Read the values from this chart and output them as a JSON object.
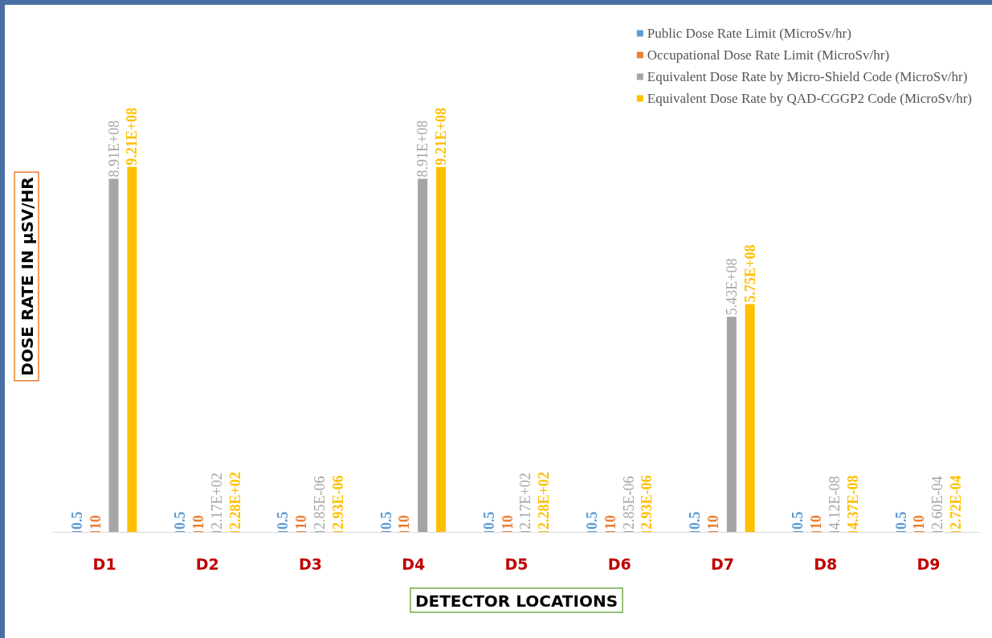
{
  "chart_data": {
    "type": "bar",
    "xlabel": "DETECTOR LOCATIONS",
    "ylabel": "DOSE RATE IN µSV/HR",
    "categories": [
      "D1",
      "D2",
      "D3",
      "D4",
      "D5",
      "D6",
      "D7",
      "D8",
      "D9"
    ],
    "series": [
      {
        "name": "Public Dose Rate Limit (MicroSv/hr)",
        "color": "#5b9bd5",
        "values": [
          0.5,
          0.5,
          0.5,
          0.5,
          0.5,
          0.5,
          0.5,
          0.5,
          0.5
        ],
        "value_labels": [
          "0.5",
          "0.5",
          "0.5",
          "0.5",
          "0.5",
          "0.5",
          "0.5",
          "0.5",
          "0.5"
        ]
      },
      {
        "name": "Occupational Dose Rate Limit (MicroSv/hr)",
        "color": "#ed7d31",
        "values": [
          10,
          10,
          10,
          10,
          10,
          10,
          10,
          10,
          10
        ],
        "value_labels": [
          "10",
          "10",
          "10",
          "10",
          "10",
          "10",
          "10",
          "10",
          "10"
        ]
      },
      {
        "name": "Equivalent Dose Rate by Micro-Shield Code (MicroSv/hr)",
        "color": "#a5a5a5",
        "values": [
          891000000,
          217,
          2.85e-06,
          891000000,
          217,
          2.85e-06,
          543000000,
          4.12e-08,
          0.00026
        ],
        "value_labels": [
          "8.91E+08",
          "2.17E+02",
          "2.85E-06",
          "8.91E+08",
          "2.17E+02",
          "2.85E-06",
          "5.43E+08",
          "4.12E-08",
          "2.60E-04"
        ]
      },
      {
        "name": "Equivalent Dose Rate by QAD-CGGP2 Code (MicroSv/hr)",
        "color": "#ffc000",
        "values": [
          921000000,
          228,
          2.93e-06,
          921000000,
          228,
          2.93e-06,
          575000000,
          4.37e-08,
          0.000272
        ],
        "value_labels": [
          "9.21E+08",
          "2.28E+02",
          "2.93E-06",
          "9.21E+08",
          "2.28E+02",
          "2.93E-06",
          "5.75E+08",
          "4.37E-08",
          "2.72E-04"
        ]
      }
    ],
    "legend": "top right",
    "grid": false
  }
}
